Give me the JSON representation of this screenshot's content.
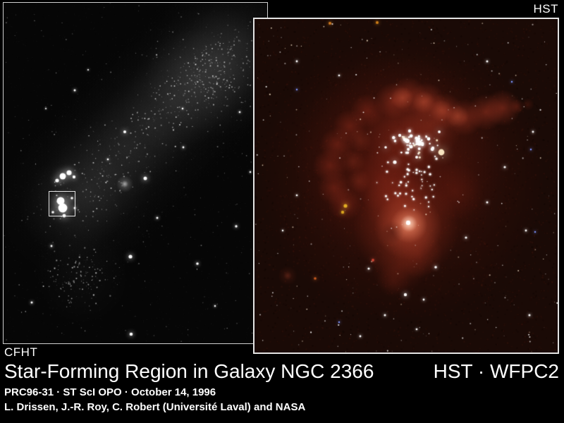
{
  "corner_labels": {
    "hst": "HST",
    "cfht": "CFHT"
  },
  "caption": {
    "title": "Star-Forming Region in Galaxy NGC 2366",
    "instrument": "HST · WFPC2",
    "release_line": "PRC96-31 · ST ScI OPO · October 14, 1996",
    "credit_line": "L. Drissen, J.-R. Roy, C. Robert (Université Laval) and NASA"
  },
  "panels": {
    "cfht": {
      "label": "CFHT",
      "description": "Ground-based grayscale image of irregular galaxy NGC 2366 with a small white box marking the star-forming region"
    },
    "hst": {
      "label": "HST",
      "description": "Hubble WFPC2 color close-up of the star-forming nebula NGC 2363: red hydrogen gas loops with a central cluster of hot white stars"
    }
  },
  "colors": {
    "page_background": "#000000",
    "text": "#ffffff",
    "cfht_border": "#cfcfcf",
    "hst_border": "#e4e4e4",
    "marker_border": "#f4f4f4",
    "cfht_sky": "#060606",
    "hst_sky": "#1a0a06",
    "nebula_red": "#a03522",
    "nebula_bright": "#f0907a",
    "nebula_core": "#ffe0c8",
    "star_white": "#ffffff",
    "star_cream": "#f2e2c4",
    "star_yellow": "#e2ae24",
    "star_orange": "#c95c20",
    "star_blue": "#7d96ff"
  }
}
